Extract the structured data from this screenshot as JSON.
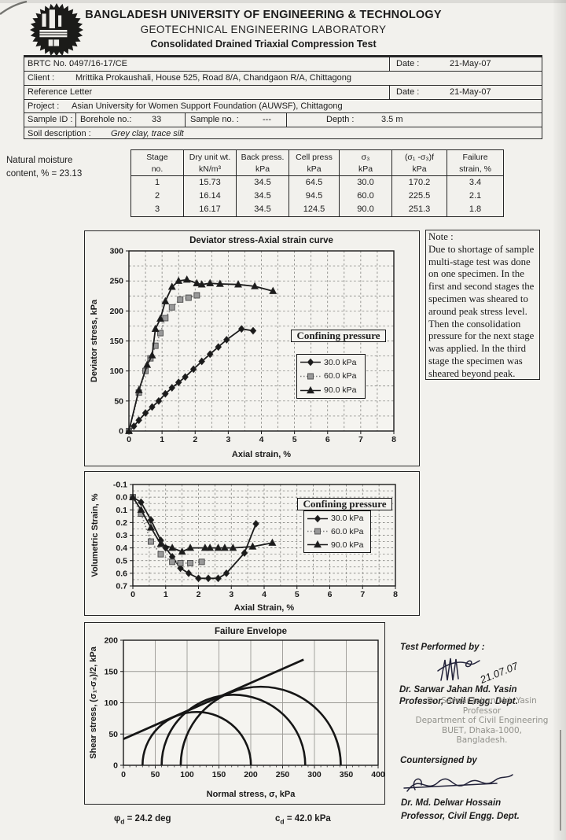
{
  "header": {
    "line1": "BANGLADESH UNIVERSITY OF ENGINEERING & TECHNOLOGY",
    "line2": "GEOTECHNICAL ENGINEERING LABORATORY",
    "line3": "Consolidated Drained Triaxial Compression Test"
  },
  "info": {
    "brtc_label": "BRTC No. :",
    "brtc_value": "0497/16-17/CE",
    "date_label": "Date :",
    "dates": [
      "21-May-07",
      "21-May-07"
    ],
    "client_label": "Client :",
    "client_value": "Mrittika Prokaushali, House 525, Road 8/A, Chandgaon R/A, Chittagong",
    "reference_label": "Reference :",
    "reference_value": "Letter",
    "project_label": "Project :",
    "project_value": "Asian University for Women Support Foundation (AUWSF), Chittagong",
    "sample_id_label": "Sample ID :",
    "borehole_label": "Borehole no.:",
    "borehole_value": "33",
    "sample_no_label": "Sample no. :",
    "sample_no_value": "---",
    "depth_label": "Depth :",
    "depth_value": "3.5 m",
    "soil_label": "Soil description :",
    "soil_value": "Grey clay, trace silt"
  },
  "moisture": {
    "line1": "Natural moisture",
    "line2": "content, % =  23.13"
  },
  "stage_table": {
    "headers": [
      [
        "Stage",
        "no."
      ],
      [
        "Dry unit wt.",
        "kN/m³"
      ],
      [
        "Back press.",
        "kPa"
      ],
      [
        "Cell press",
        "kPa"
      ],
      [
        "σ₃",
        "kPa"
      ],
      [
        "(σ₁ -σ₃)f",
        "kPa"
      ],
      [
        "Failure",
        "strain, %"
      ]
    ],
    "rows": [
      [
        "1",
        "15.73",
        "34.5",
        "64.5",
        "30.0",
        "170.2",
        "3.4"
      ],
      [
        "2",
        "16.14",
        "34.5",
        "94.5",
        "60.0",
        "225.5",
        "2.1"
      ],
      [
        "3",
        "16.17",
        "34.5",
        "124.5",
        "90.0",
        "251.3",
        "1.8"
      ]
    ]
  },
  "note": {
    "title": "Note :",
    "body": "Due to shortage of sample\nmulti-stage test was done\non one specimen. In the\nfirst and second stages the\nspecimen was sheared to\naround peak stress level.\nThen the consolidation\npressure for the next stage\nwas applied. In the third\nstage the specimen was\nsheared beyond peak."
  },
  "chart_data": [
    {
      "type": "line",
      "title": "Deviator stress-Axial strain curve",
      "xlabel": "Axial strain, %",
      "ylabel": "Deviator stress, kPa",
      "xlim": [
        0,
        8
      ],
      "ylim": [
        0,
        300
      ],
      "xticks": [
        0,
        1,
        2,
        3,
        4,
        5,
        6,
        7,
        8
      ],
      "xtick_labels": [
        "0",
        "1",
        "2",
        "3",
        "4",
        "5",
        "6",
        "7",
        "8"
      ],
      "yticks": [
        0,
        50,
        100,
        150,
        200,
        250,
        300
      ],
      "ytick_labels": [
        "0",
        "50",
        "100",
        "150",
        "200",
        "250",
        "300"
      ],
      "grid": {
        "x_step": 0.5,
        "y_step": 25,
        "style": "dashed"
      },
      "legend_title": "Confining pressure",
      "legend_position": "right-middle",
      "series": [
        {
          "name": "30.0 kPa",
          "marker": "diamond",
          "marker_color": "#1b1b1b",
          "line_color": "#1b1b1b",
          "dash": null,
          "x": [
            0,
            0.15,
            0.3,
            0.5,
            0.7,
            0.9,
            1.1,
            1.3,
            1.5,
            1.7,
            1.95,
            2.2,
            2.45,
            2.7,
            2.95,
            3.4,
            3.75
          ],
          "y": [
            0,
            8,
            18,
            30,
            40,
            50,
            62,
            72,
            81,
            90,
            103,
            116,
            128,
            140,
            152,
            170,
            167
          ]
        },
        {
          "name": "60.0 kPa",
          "marker": "square",
          "marker_color": "#999999",
          "line_color": "#7d7d7d",
          "dash": "1.5,2.5",
          "x": [
            0,
            0.3,
            0.5,
            0.65,
            0.8,
            0.95,
            1.1,
            1.3,
            1.55,
            1.8,
            2.05
          ],
          "y": [
            0,
            64,
            100,
            121,
            142,
            163,
            188,
            206,
            219,
            222,
            226
          ]
        },
        {
          "name": "90.0 kPa",
          "marker": "triangle",
          "marker_color": "#1b1b1b",
          "line_color": "#1b1b1b",
          "dash": null,
          "x": [
            0,
            0.3,
            0.55,
            0.7,
            0.8,
            0.95,
            1.1,
            1.3,
            1.5,
            1.75,
            2.05,
            2.2,
            2.45,
            2.75,
            3.3,
            3.8,
            4.35
          ],
          "y": [
            0,
            68,
            110,
            126,
            170,
            187,
            216,
            240,
            250,
            252,
            246,
            244,
            246,
            245,
            244,
            241,
            233
          ]
        }
      ]
    },
    {
      "type": "line",
      "title": "",
      "xlabel": "Axial Strain, %",
      "ylabel": "Volumetric Strain, %",
      "xlim": [
        0,
        8
      ],
      "ylim": [
        -0.1,
        0.7
      ],
      "y_inverted": true,
      "xticks": [
        0,
        1,
        2,
        3,
        4,
        5,
        6,
        7,
        8
      ],
      "xtick_labels": [
        "0",
        "1",
        "2",
        "3",
        "4",
        "5",
        "6",
        "7",
        "8"
      ],
      "yticks": [
        -0.1,
        0,
        0.1,
        0.2,
        0.3,
        0.4,
        0.5,
        0.6,
        0.7
      ],
      "ytick_labels": [
        "-0.1",
        "0.0",
        "0.1",
        "0.2",
        "0.3",
        "0.4",
        "0.5",
        "0.6",
        "0.7"
      ],
      "grid": {
        "x_step": 0.5,
        "y_step": 0.05,
        "style": "dashed"
      },
      "legend_title": "Confining pressure",
      "legend_position": "right-top",
      "series": [
        {
          "name": "30.0 kPa",
          "marker": "diamond",
          "marker_color": "#1b1b1b",
          "line_color": "#1b1b1b",
          "dash": null,
          "x": [
            0,
            0.25,
            0.55,
            0.85,
            1.0,
            1.2,
            1.45,
            1.7,
            2.0,
            2.3,
            2.6,
            2.85,
            3.4,
            3.75
          ],
          "y": [
            0,
            0.04,
            0.18,
            0.34,
            0.4,
            0.47,
            0.56,
            0.6,
            0.64,
            0.64,
            0.64,
            0.6,
            0.44,
            0.21
          ]
        },
        {
          "name": "60.0 kPa",
          "marker": "square",
          "marker_color": "#999999",
          "line_color": "#7d7d7d",
          "dash": "1.5,2.5",
          "x": [
            0,
            0.25,
            0.55,
            0.85,
            1.2,
            1.45,
            1.75,
            2.1
          ],
          "y": [
            0,
            0.13,
            0.35,
            0.45,
            0.51,
            0.52,
            0.52,
            0.51
          ]
        },
        {
          "name": "90.0 kPa",
          "marker": "triangle",
          "marker_color": "#1b1b1b",
          "line_color": "#1b1b1b",
          "dash": null,
          "x": [
            0,
            0.25,
            0.55,
            0.85,
            1.2,
            1.5,
            1.75,
            2.2,
            2.35,
            2.6,
            2.8,
            3.05,
            3.65,
            4.25
          ],
          "y": [
            0,
            0.1,
            0.24,
            0.37,
            0.4,
            0.43,
            0.4,
            0.4,
            0.4,
            0.4,
            0.4,
            0.4,
            0.39,
            0.36
          ]
        }
      ]
    },
    {
      "type": "mohr",
      "title": "Failure Envelope",
      "xlabel": "Normal stress, σ, kPa",
      "ylabel": "Shear stress, (σ₁-σ₃)/2, kPa",
      "xlim": [
        0,
        400
      ],
      "ylim": [
        0,
        200
      ],
      "xticks": [
        0,
        50,
        100,
        150,
        200,
        250,
        300,
        350,
        400
      ],
      "xtick_labels": [
        "0",
        "50",
        "100",
        "150",
        "200",
        "250",
        "300",
        "350",
        "400"
      ],
      "yticks": [
        0,
        50,
        100,
        150,
        200
      ],
      "ytick_labels": [
        "0",
        "50",
        "100",
        "150",
        "200"
      ],
      "grid": {
        "x_step": 50,
        "y_step": 50,
        "style": "solid"
      },
      "circles": [
        {
          "sigma3": 30,
          "sigma1": 200.2
        },
        {
          "sigma3": 60,
          "sigma1": 285.5
        },
        {
          "sigma3": 90,
          "sigma1": 341.3
        }
      ],
      "envelope": {
        "cohesion_kPa": 42.0,
        "friction_angle_deg": 24.2,
        "line_start": [
          0,
          42
        ],
        "line_end": [
          283,
          169
        ]
      }
    }
  ],
  "results": {
    "phi_sym": "φ",
    "phi_sub": "d",
    "phi_rest": "=  24.2 deg",
    "c_sym": "c",
    "c_sub": "d",
    "c_rest": "=  42.0 kPa"
  },
  "signatures": {
    "performed_label": "Test Performed by :",
    "performed_date": "21.07.07",
    "performed_name": "Dr. Sarwar Jahan Md. Yasin",
    "performed_title": "Professor, Civil Engg. Dept.",
    "stamp_lines": [
      "Dr. Sarwar Jahan Md. Yasin",
      "Professor",
      "Department of Civil Engineering",
      "BUET, Dhaka-1000, Bangladesh."
    ],
    "countersigned_label": "Countersigned by",
    "countersigned_name": "Dr. Md. Delwar Hossain",
    "countersigned_title": "Professor, Civil Engg. Dept."
  }
}
